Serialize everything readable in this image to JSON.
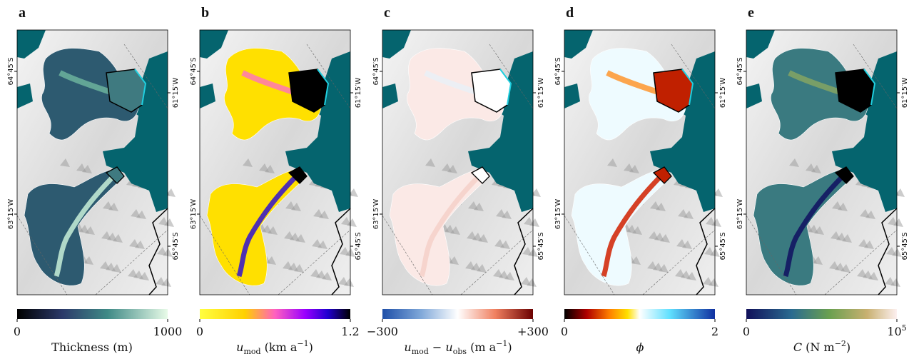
{
  "panels": [
    {
      "letter": "a",
      "coords": {
        "left": [
          "64°45′S",
          "63°15′W"
        ],
        "right": [
          "61°15′W",
          "65°45′S"
        ]
      },
      "colorbar": {
        "ticks": [
          "0",
          "1000"
        ],
        "label": [
          "Thickness (m)"
        ]
      }
    },
    {
      "letter": "b",
      "coords": {
        "left": [
          "64°45′S",
          "63°15′W"
        ],
        "right": [
          "61°15′W",
          "65°45′S"
        ]
      },
      "colorbar": {
        "ticks": [
          "0",
          "1.2"
        ],
        "label": [
          "u",
          "mod",
          " (km a",
          "−1",
          ")"
        ]
      }
    },
    {
      "letter": "c",
      "coords": {
        "left": [
          "64°45′S",
          "63°15′W"
        ],
        "right": [
          "61°15′W",
          "65°45′S"
        ]
      },
      "colorbar": {
        "ticks": [
          "−300",
          "+300"
        ],
        "label": [
          "u",
          "mod",
          " − ",
          "u",
          "obs",
          " (m a",
          "−1",
          ")"
        ]
      }
    },
    {
      "letter": "d",
      "coords": {
        "left": [
          "64°45′S",
          "63°15′W"
        ],
        "right": [
          "61°15′W",
          "65°45′S"
        ]
      },
      "colorbar": {
        "ticks": [
          "0",
          "2"
        ],
        "label": [
          "ϕ"
        ]
      }
    },
    {
      "letter": "e",
      "coords": {
        "left": [
          "64°45′S",
          "63°15′W"
        ],
        "right": [
          "61°15′W",
          "65°45′S"
        ]
      },
      "colorbar": {
        "ticks": [
          "0",
          [
            "10",
            "5"
          ]
        ],
        "label": [
          "C",
          " (N m",
          "−2",
          ")"
        ]
      }
    }
  ]
}
